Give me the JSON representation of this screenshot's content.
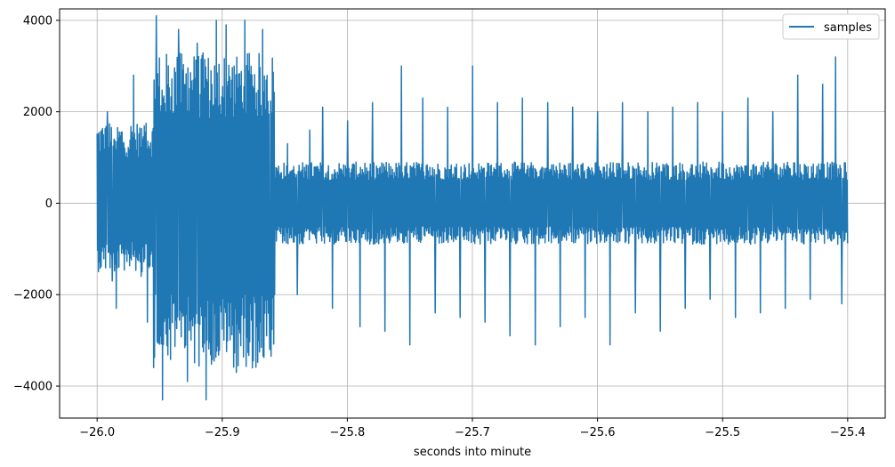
{
  "chart_data": {
    "type": "line",
    "title": "",
    "xlabel": "seconds into minute",
    "ylabel": "",
    "xlim": [
      -26.03,
      -25.37
    ],
    "ylim": [
      -4700,
      4250
    ],
    "grid": true,
    "legend_position": "top-right",
    "xticks": [
      -26.0,
      -25.9,
      -25.8,
      -25.7,
      -25.6,
      -25.5,
      -25.4
    ],
    "xtick_labels": [
      "−26.0",
      "−25.9",
      "−25.8",
      "−25.7",
      "−25.6",
      "−25.5",
      "−25.4"
    ],
    "yticks": [
      -4000,
      -2000,
      0,
      2000,
      4000
    ],
    "ytick_labels": [
      "−4000",
      "−2000",
      "0",
      "2000",
      "4000"
    ],
    "series": [
      {
        "name": "samples",
        "color": "#1f77b4",
        "x_start": -26.0,
        "x_end": -25.4,
        "segments": [
          {
            "x_from": -26.0,
            "x_to": -25.955,
            "amp_min": -1500,
            "amp_max": 1800
          },
          {
            "x_from": -25.955,
            "x_to": -25.858,
            "amp_min": -3600,
            "amp_max": 3300
          },
          {
            "x_from": -25.858,
            "x_to": -25.4,
            "amp_min": -900,
            "amp_max": 900
          }
        ],
        "spikes": [
          {
            "x": -25.995,
            "y": 1500
          },
          {
            "x": -25.992,
            "y": 2000
          },
          {
            "x": -25.988,
            "y": -1700
          },
          {
            "x": -25.985,
            "y": -2300
          },
          {
            "x": -25.978,
            "y": 1200
          },
          {
            "x": -25.971,
            "y": 2800
          },
          {
            "x": -25.965,
            "y": -1600
          },
          {
            "x": -25.96,
            "y": -2600
          },
          {
            "x": -25.953,
            "y": 4100
          },
          {
            "x": -25.948,
            "y": -4300
          },
          {
            "x": -25.935,
            "y": 3800
          },
          {
            "x": -25.928,
            "y": -3900
          },
          {
            "x": -25.92,
            "y": 3500
          },
          {
            "x": -25.913,
            "y": -4300
          },
          {
            "x": -25.905,
            "y": 4000
          },
          {
            "x": -25.897,
            "y": 3900
          },
          {
            "x": -25.889,
            "y": -3700
          },
          {
            "x": -25.882,
            "y": 4000
          },
          {
            "x": -25.876,
            "y": -3600
          },
          {
            "x": -25.868,
            "y": 3800
          },
          {
            "x": -25.862,
            "y": -3200
          },
          {
            "x": -25.848,
            "y": 1300
          },
          {
            "x": -25.84,
            "y": -2000
          },
          {
            "x": -25.83,
            "y": 1600
          },
          {
            "x": -25.82,
            "y": 2100
          },
          {
            "x": -25.812,
            "y": -2300
          },
          {
            "x": -25.8,
            "y": 1800
          },
          {
            "x": -25.79,
            "y": -2700
          },
          {
            "x": -25.78,
            "y": 2200
          },
          {
            "x": -25.77,
            "y": -2800
          },
          {
            "x": -25.757,
            "y": 3000
          },
          {
            "x": -25.75,
            "y": -3100
          },
          {
            "x": -25.74,
            "y": 2300
          },
          {
            "x": -25.73,
            "y": -2400
          },
          {
            "x": -25.72,
            "y": 2100
          },
          {
            "x": -25.71,
            "y": -2500
          },
          {
            "x": -25.7,
            "y": 3000
          },
          {
            "x": -25.69,
            "y": -2600
          },
          {
            "x": -25.68,
            "y": 2200
          },
          {
            "x": -25.67,
            "y": -2900
          },
          {
            "x": -25.66,
            "y": 2300
          },
          {
            "x": -25.65,
            "y": -3100
          },
          {
            "x": -25.64,
            "y": 2200
          },
          {
            "x": -25.63,
            "y": -2700
          },
          {
            "x": -25.62,
            "y": 2100
          },
          {
            "x": -25.61,
            "y": -2500
          },
          {
            "x": -25.6,
            "y": 2000
          },
          {
            "x": -25.59,
            "y": -3100
          },
          {
            "x": -25.58,
            "y": 2200
          },
          {
            "x": -25.57,
            "y": -2400
          },
          {
            "x": -25.56,
            "y": 2000
          },
          {
            "x": -25.55,
            "y": -2800
          },
          {
            "x": -25.54,
            "y": 2100
          },
          {
            "x": -25.53,
            "y": -2300
          },
          {
            "x": -25.52,
            "y": 2200
          },
          {
            "x": -25.51,
            "y": -2100
          },
          {
            "x": -25.5,
            "y": 2000
          },
          {
            "x": -25.49,
            "y": -2500
          },
          {
            "x": -25.48,
            "y": 2300
          },
          {
            "x": -25.47,
            "y": -2400
          },
          {
            "x": -25.46,
            "y": 2000
          },
          {
            "x": -25.45,
            "y": -2300
          },
          {
            "x": -25.44,
            "y": 2800
          },
          {
            "x": -25.43,
            "y": -2100
          },
          {
            "x": -25.42,
            "y": 2600
          },
          {
            "x": -25.41,
            "y": 3200
          },
          {
            "x": -25.405,
            "y": -2200
          }
        ]
      }
    ]
  }
}
